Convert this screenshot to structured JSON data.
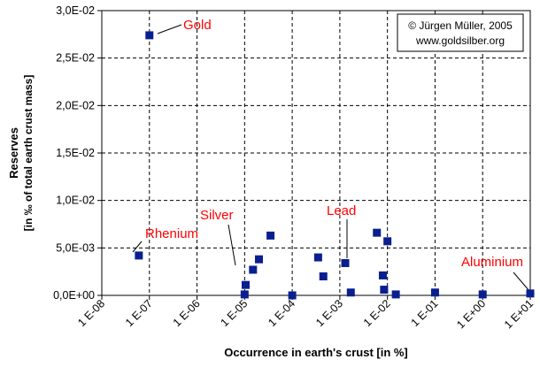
{
  "chart_data": {
    "type": "scatter",
    "title": "",
    "xlabel": "Occurrence in earth's crust  [in %]",
    "ylabel": "Reserves",
    "ylabel_sub": "[in ‰ of total earth crust mass]",
    "x_scale": "log",
    "xlim": [
      1e-08,
      10
    ],
    "ylim": [
      0,
      0.03
    ],
    "x_ticks": [
      "1 E-08",
      "1 E-07",
      "1 E-06",
      "1 E-05",
      "1 E-04",
      "1 E-03",
      "1 E-02",
      "1 E-01",
      "1 E+00",
      "1 E+01"
    ],
    "y_ticks": [
      "0,0E+00",
      "5,0E-03",
      "1,0E-02",
      "1,5E-02",
      "2,0E-02",
      "2,5E-02",
      "3,0E-02"
    ],
    "grid": true,
    "marker_color": "#0a1f8f",
    "series": [
      {
        "points": [
          {
            "x": 1e-07,
            "y": 0.0274
          },
          {
            "x": 6e-08,
            "y": 0.0042
          },
          {
            "x": 1e-05,
            "y": 0.0001
          },
          {
            "x": 1.05e-05,
            "y": 0.0011
          },
          {
            "x": 1.5e-05,
            "y": 0.0027
          },
          {
            "x": 2e-05,
            "y": 0.0038
          },
          {
            "x": 3.5e-05,
            "y": 0.0063
          },
          {
            "x": 0.0001,
            "y": 0.0
          },
          {
            "x": 0.00035,
            "y": 0.004
          },
          {
            "x": 0.00045,
            "y": 0.002
          },
          {
            "x": 0.0013,
            "y": 0.0034
          },
          {
            "x": 0.0017,
            "y": 0.0003
          },
          {
            "x": 0.006,
            "y": 0.0066
          },
          {
            "x": 0.008,
            "y": 0.0021
          },
          {
            "x": 0.0085,
            "y": 0.0006
          },
          {
            "x": 0.01,
            "y": 0.0057
          },
          {
            "x": 0.015,
            "y": 0.0001
          },
          {
            "x": 0.1,
            "y": 0.0003
          },
          {
            "x": 1.0,
            "y": 0.0001
          },
          {
            "x": 10.0,
            "y": 0.0002
          }
        ]
      }
    ],
    "annotations": [
      {
        "text": "Gold",
        "color": "#ff0000"
      },
      {
        "text": "Rhenium",
        "color": "#ff0000"
      },
      {
        "text": "Silver",
        "color": "#ff0000"
      },
      {
        "text": "Lead",
        "color": "#ff0000"
      },
      {
        "text": "Aluminium",
        "color": "#ff0000"
      }
    ],
    "copyright": [
      "© Jürgen Müller, 2005",
      "www.goldsilber.org"
    ]
  }
}
